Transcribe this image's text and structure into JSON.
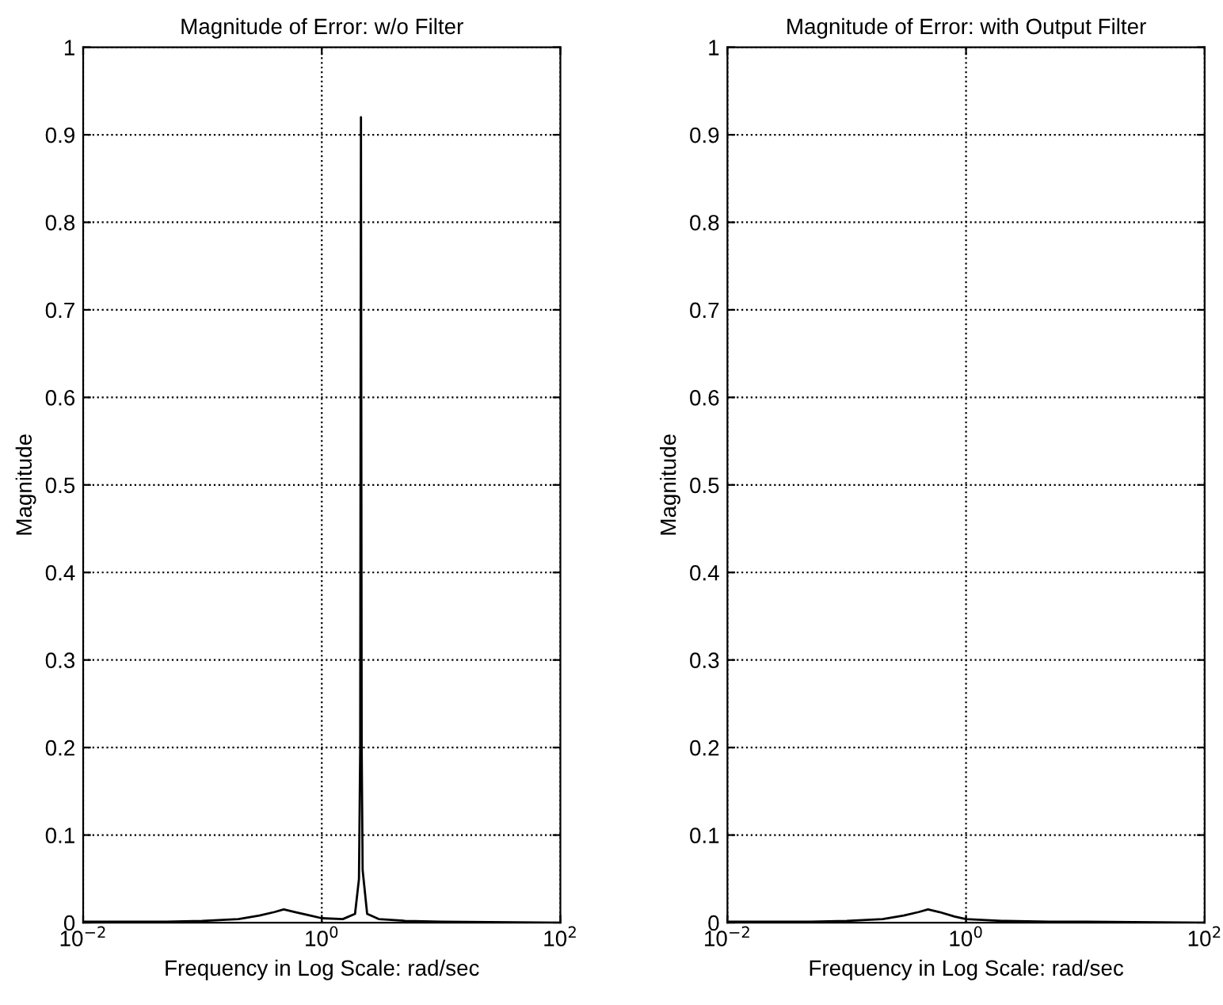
{
  "chart_data": [
    {
      "type": "line",
      "title": "Magnitude of Error: w/o Filter",
      "xlabel": "Frequency in Log Scale: rad/sec",
      "ylabel": "Magnitude",
      "log": "x",
      "grid": true,
      "marker": "none",
      "line_style": "solid",
      "xlim": [
        0.01,
        100
      ],
      "xticks": [
        {
          "value": 0.01,
          "label": "10$^{−2}$"
        },
        {
          "value": 1,
          "label": "10$^{0}$"
        },
        {
          "value": 100,
          "label": "10$^{2}$"
        }
      ],
      "ylim": [
        0,
        1
      ],
      "yticks": [
        0,
        0.1,
        0.2,
        0.3,
        0.4,
        0.5,
        0.6,
        0.7,
        0.8,
        0.9,
        1
      ],
      "series": [
        {
          "color": "#000000",
          "x": [
            0.01,
            0.05,
            0.1,
            0.2,
            0.3,
            0.4,
            0.48,
            0.6,
            0.8,
            1,
            1.5,
            1.9,
            2.05,
            2.1,
            2.13,
            2.16,
            2.2,
            2.4,
            3,
            5,
            10,
            100
          ],
          "values": [
            0.001,
            0.001,
            0.002,
            0.004,
            0.008,
            0.012,
            0.015,
            0.012,
            0.008,
            0.005,
            0.004,
            0.01,
            0.05,
            0.2,
            0.92,
            0.2,
            0.06,
            0.01,
            0.004,
            0.002,
            0.001,
            0
          ]
        }
      ]
    },
    {
      "type": "line",
      "title": "Magnitude of Error: with Output Filter",
      "xlabel": "Frequency in Log Scale: rad/sec",
      "ylabel": "Magnitude",
      "log": "x",
      "grid": true,
      "marker": "none",
      "line_style": "solid",
      "xlim": [
        0.01,
        100
      ],
      "xticks": [
        {
          "value": 0.01,
          "label": "10$^{−2}$"
        },
        {
          "value": 1,
          "label": "10$^{0}$"
        },
        {
          "value": 100,
          "label": "10$^{2}$"
        }
      ],
      "ylim": [
        0,
        1
      ],
      "yticks": [
        0,
        0.1,
        0.2,
        0.3,
        0.4,
        0.5,
        0.6,
        0.7,
        0.8,
        0.9,
        1
      ],
      "series": [
        {
          "color": "#000000",
          "x": [
            0.01,
            0.05,
            0.1,
            0.2,
            0.3,
            0.4,
            0.48,
            0.6,
            0.8,
            1,
            2,
            5,
            10,
            100
          ],
          "values": [
            0.001,
            0.001,
            0.002,
            0.004,
            0.008,
            0.012,
            0.015,
            0.012,
            0.007,
            0.004,
            0.002,
            0.001,
            0.001,
            0
          ]
        }
      ]
    }
  ]
}
